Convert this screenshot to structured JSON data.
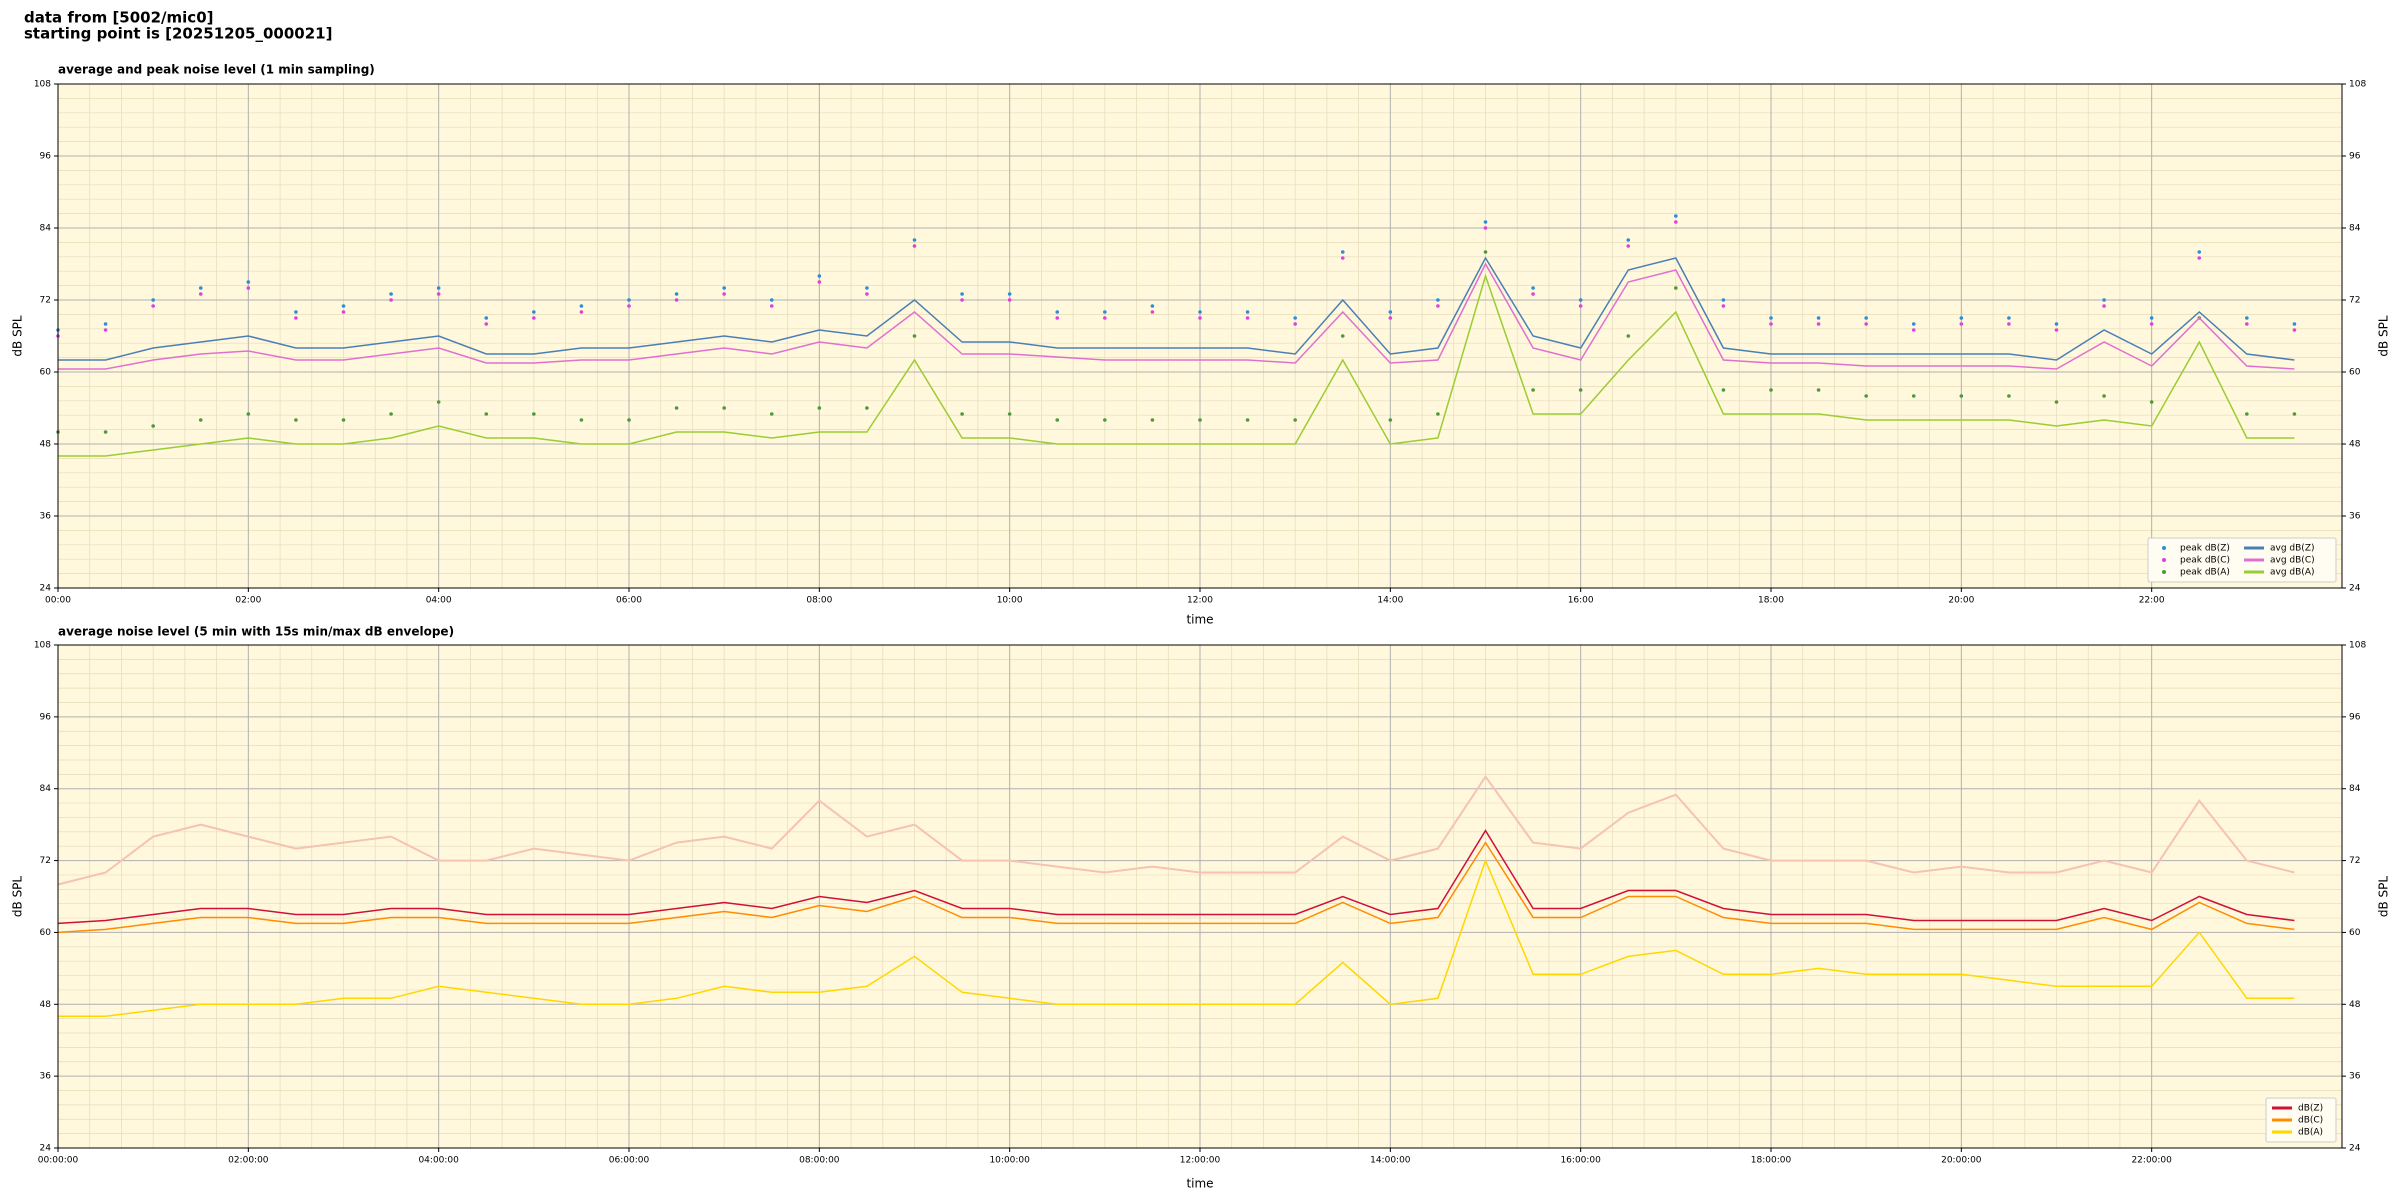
{
  "header": {
    "line1": "data from [5002/mic0]",
    "line2": "starting point is [20251205_000021]"
  },
  "chart_data": [
    {
      "type": "line",
      "title": "average and peak noise level (1 min sampling)",
      "x_label": "time",
      "y_label": "dB SPL",
      "xlim": [
        0,
        24
      ],
      "ylim": [
        24,
        108
      ],
      "yticks": [
        24,
        36,
        48,
        60,
        72,
        84,
        96,
        108
      ],
      "xticks": [
        {
          "value": 0,
          "label": "00:00"
        },
        {
          "value": 2,
          "label": "02:00"
        },
        {
          "value": 4,
          "label": "04:00"
        },
        {
          "value": 6,
          "label": "06:00"
        },
        {
          "value": 8,
          "label": "08:00"
        },
        {
          "value": 10,
          "label": "10:00"
        },
        {
          "value": 12,
          "label": "12:00"
        },
        {
          "value": 14,
          "label": "14:00"
        },
        {
          "value": 16,
          "label": "16:00"
        },
        {
          "value": 18,
          "label": "18:00"
        },
        {
          "value": 20,
          "label": "20:00"
        },
        {
          "value": 22,
          "label": "22:00"
        }
      ],
      "grid": true,
      "legend": "lower right",
      "legend_columns": 2,
      "background": "#fff8dc",
      "x": [
        0,
        0.5,
        1,
        1.5,
        2,
        2.5,
        3,
        3.5,
        4,
        4.5,
        5,
        5.5,
        6,
        6.5,
        7,
        7.5,
        8,
        8.5,
        9,
        9.5,
        10,
        10.5,
        11,
        11.5,
        12,
        12.5,
        13,
        13.5,
        14,
        14.5,
        15,
        15.5,
        16,
        16.5,
        17,
        17.5,
        18,
        18.5,
        19,
        19.5,
        20,
        20.5,
        21,
        21.5,
        22,
        22.5,
        23,
        23.5
      ],
      "series": [
        {
          "name": "peak dB(Z)",
          "mark": "dot",
          "color": "#2a8fd8",
          "values": [
            67,
            68,
            72,
            74,
            75,
            70,
            71,
            73,
            74,
            69,
            70,
            71,
            72,
            73,
            74,
            72,
            76,
            74,
            82,
            73,
            73,
            70,
            70,
            71,
            70,
            70,
            69,
            80,
            70,
            72,
            85,
            74,
            72,
            82,
            86,
            72,
            69,
            69,
            69,
            68,
            69,
            69,
            68,
            72,
            69,
            80,
            69,
            68
          ]
        },
        {
          "name": "peak dB(C)",
          "mark": "dot",
          "color": "#e040e0",
          "values": [
            66,
            67,
            71,
            73,
            74,
            69,
            70,
            72,
            73,
            68,
            69,
            70,
            71,
            72,
            73,
            71,
            75,
            73,
            81,
            72,
            72,
            69,
            69,
            70,
            69,
            69,
            68,
            79,
            69,
            71,
            84,
            73,
            71,
            81,
            85,
            71,
            68,
            68,
            68,
            67,
            68,
            68,
            67,
            71,
            68,
            79,
            68,
            67
          ]
        },
        {
          "name": "peak dB(A)",
          "mark": "dot",
          "color": "#4c9a3c",
          "values": [
            50,
            50,
            51,
            52,
            53,
            52,
            52,
            53,
            55,
            53,
            53,
            52,
            52,
            54,
            54,
            53,
            54,
            54,
            66,
            53,
            53,
            52,
            52,
            52,
            52,
            52,
            52,
            66,
            52,
            53,
            80,
            57,
            57,
            66,
            74,
            57,
            57,
            57,
            56,
            56,
            56,
            56,
            55,
            56,
            55,
            69,
            53,
            53
          ]
        },
        {
          "name": "avg dB(Z)",
          "mark": "line",
          "color": "#4a7fb5",
          "values": [
            62,
            62,
            64,
            65,
            66,
            64,
            64,
            65,
            66,
            63,
            63,
            64,
            64,
            65,
            66,
            65,
            67,
            66,
            72,
            65,
            65,
            64,
            64,
            64,
            64,
            64,
            63,
            72,
            63,
            64,
            79,
            66,
            64,
            77,
            79,
            64,
            63,
            63,
            63,
            63,
            63,
            63,
            62,
            67,
            63,
            70,
            63,
            62
          ]
        },
        {
          "name": "avg dB(C)",
          "mark": "line",
          "color": "#e070d0",
          "values": [
            60.5,
            60.5,
            62,
            63,
            63.5,
            62,
            62,
            63,
            64,
            61.5,
            61.5,
            62,
            62,
            63,
            64,
            63,
            65,
            64,
            70,
            63,
            63,
            62.5,
            62,
            62,
            62,
            62,
            61.5,
            70,
            61.5,
            62,
            78,
            64,
            62,
            75,
            77,
            62,
            61.5,
            61.5,
            61,
            61,
            61,
            61,
            60.5,
            65,
            61,
            69,
            61,
            60.5
          ]
        },
        {
          "name": "avg dB(A)",
          "mark": "line",
          "color": "#9acd32",
          "values": [
            46,
            46,
            47,
            48,
            49,
            48,
            48,
            49,
            51,
            49,
            49,
            48,
            48,
            50,
            50,
            49,
            50,
            50,
            62,
            49,
            49,
            48,
            48,
            48,
            48,
            48,
            48,
            62,
            48,
            49,
            76,
            53,
            53,
            62,
            70,
            53,
            53,
            53,
            52,
            52,
            52,
            52,
            51,
            52,
            51,
            65,
            49,
            49
          ]
        }
      ]
    },
    {
      "type": "line",
      "title": "average noise level (5 min with 15s min/max dB envelope)",
      "x_label": "time",
      "y_label": "dB SPL",
      "xlim": [
        0,
        24
      ],
      "ylim": [
        24,
        108
      ],
      "yticks": [
        24,
        36,
        48,
        60,
        72,
        84,
        96,
        108
      ],
      "xticks": [
        {
          "value": 0,
          "label": "00:00:00"
        },
        {
          "value": 2,
          "label": "02:00:00"
        },
        {
          "value": 4,
          "label": "04:00:00"
        },
        {
          "value": 6,
          "label": "06:00:00"
        },
        {
          "value": 8,
          "label": "08:00:00"
        },
        {
          "value": 10,
          "label": "10:00:00"
        },
        {
          "value": 12,
          "label": "12:00:00"
        },
        {
          "value": 14,
          "label": "14:00:00"
        },
        {
          "value": 16,
          "label": "16:00:00"
        },
        {
          "value": 18,
          "label": "18:00:00"
        },
        {
          "value": 20,
          "label": "20:00:00"
        },
        {
          "value": 22,
          "label": "22:00:00"
        }
      ],
      "grid": true,
      "legend": "lower right",
      "legend_columns": 1,
      "background": "#fff8dc",
      "x": [
        0,
        0.5,
        1,
        1.5,
        2,
        2.5,
        3,
        3.5,
        4,
        4.5,
        5,
        5.5,
        6,
        6.5,
        7,
        7.5,
        8,
        8.5,
        9,
        9.5,
        10,
        10.5,
        11,
        11.5,
        12,
        12.5,
        13,
        13.5,
        14,
        14.5,
        15,
        15.5,
        16,
        16.5,
        17,
        17.5,
        18,
        18.5,
        19,
        19.5,
        20,
        20.5,
        21,
        21.5,
        22,
        22.5,
        23,
        23.5
      ],
      "envelope_color": "#f6c2b2",
      "envelope_max": [
        68,
        70,
        76,
        78,
        76,
        74,
        75,
        76,
        72,
        72,
        74,
        73,
        72,
        75,
        76,
        74,
        82,
        76,
        78,
        72,
        72,
        71,
        70,
        71,
        70,
        70,
        70,
        76,
        72,
        74,
        86,
        75,
        74,
        80,
        83,
        74,
        72,
        72,
        72,
        70,
        71,
        70,
        70,
        72,
        70,
        82,
        72,
        70
      ],
      "series": [
        {
          "name": "dB(Z)",
          "mark": "line",
          "color": "#d0103a",
          "values": [
            61.5,
            62,
            63,
            64,
            64,
            63,
            63,
            64,
            64,
            63,
            63,
            63,
            63,
            64,
            65,
            64,
            66,
            65,
            67,
            64,
            64,
            63,
            63,
            63,
            63,
            63,
            63,
            66,
            63,
            64,
            77,
            64,
            64,
            67,
            67,
            64,
            63,
            63,
            63,
            62,
            62,
            62,
            62,
            64,
            62,
            66,
            63,
            62
          ]
        },
        {
          "name": "dB(C)",
          "mark": "line",
          "color": "#ff8c00",
          "values": [
            60,
            60.5,
            61.5,
            62.5,
            62.5,
            61.5,
            61.5,
            62.5,
            62.5,
            61.5,
            61.5,
            61.5,
            61.5,
            62.5,
            63.5,
            62.5,
            64.5,
            63.5,
            66,
            62.5,
            62.5,
            61.5,
            61.5,
            61.5,
            61.5,
            61.5,
            61.5,
            65,
            61.5,
            62.5,
            75,
            62.5,
            62.5,
            66,
            66,
            62.5,
            61.5,
            61.5,
            61.5,
            60.5,
            60.5,
            60.5,
            60.5,
            62.5,
            60.5,
            65,
            61.5,
            60.5
          ]
        },
        {
          "name": "dB(A)",
          "mark": "line",
          "color": "#ffd700",
          "values": [
            46,
            46,
            47,
            48,
            48,
            48,
            49,
            49,
            51,
            50,
            49,
            48,
            48,
            49,
            51,
            50,
            50,
            51,
            56,
            50,
            49,
            48,
            48,
            48,
            48,
            48,
            48,
            55,
            48,
            49,
            72,
            53,
            53,
            56,
            57,
            53,
            53,
            54,
            53,
            53,
            53,
            52,
            51,
            51,
            51,
            60,
            49,
            49
          ]
        }
      ]
    }
  ]
}
